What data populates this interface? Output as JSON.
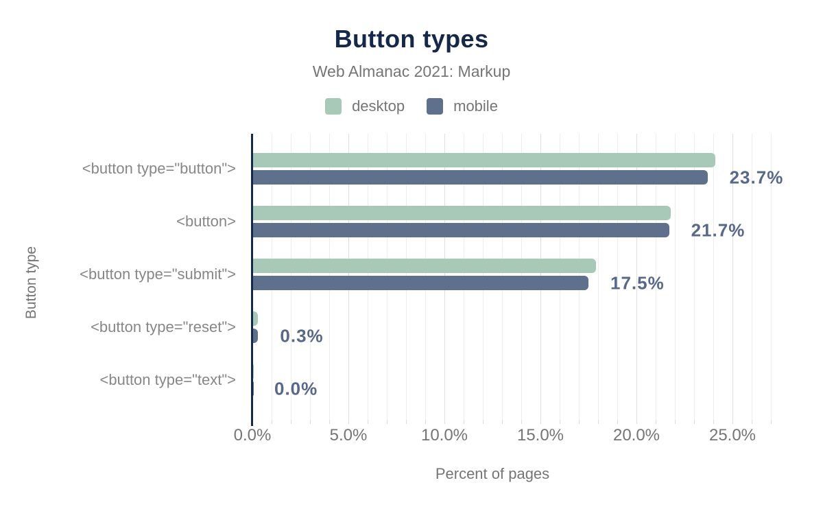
{
  "chart_data": {
    "type": "bar",
    "orientation": "horizontal",
    "title": "Button types",
    "subtitle": "Web Almanac 2021: Markup",
    "xlabel": "Percent of pages",
    "ylabel": "Button type",
    "categories": [
      "<button type=\"button\">",
      "<button>",
      "<button type=\"submit\">",
      "<button type=\"reset\">",
      "<button type=\"text\">"
    ],
    "series": [
      {
        "name": "desktop",
        "color": "#a8c9b8",
        "values": [
          24.1,
          21.8,
          17.9,
          0.3,
          0.0
        ]
      },
      {
        "name": "mobile",
        "color": "#5f708d",
        "values": [
          23.7,
          21.7,
          17.5,
          0.3,
          0.0
        ]
      }
    ],
    "value_labels": [
      "23.7%",
      "21.7%",
      "17.5%",
      "0.3%",
      "0.0%"
    ],
    "x_ticks": [
      {
        "value": 0,
        "label": "0.0%"
      },
      {
        "value": 5,
        "label": "5.0%"
      },
      {
        "value": 10,
        "label": "10.0%"
      },
      {
        "value": 15,
        "label": "15.0%"
      },
      {
        "value": 20,
        "label": "20.0%"
      },
      {
        "value": 25,
        "label": "25.0%"
      }
    ],
    "xlim": [
      0,
      27
    ],
    "grid": {
      "direction": "vertical",
      "minor_step_pct": 1,
      "major_step_pct": 5
    },
    "legend_position": "top"
  },
  "colors": {
    "background": "#ffffff",
    "title": "#16284a",
    "subtitle": "#757575",
    "axis_line": "#16284a",
    "tick_label": "#757575",
    "category_label": "#878787",
    "value_label": "#586888",
    "grid_minor": "#eeeeee",
    "grid_major": "#dfdfdf",
    "desktop": "#a8c9b8",
    "mobile": "#5f708d"
  }
}
